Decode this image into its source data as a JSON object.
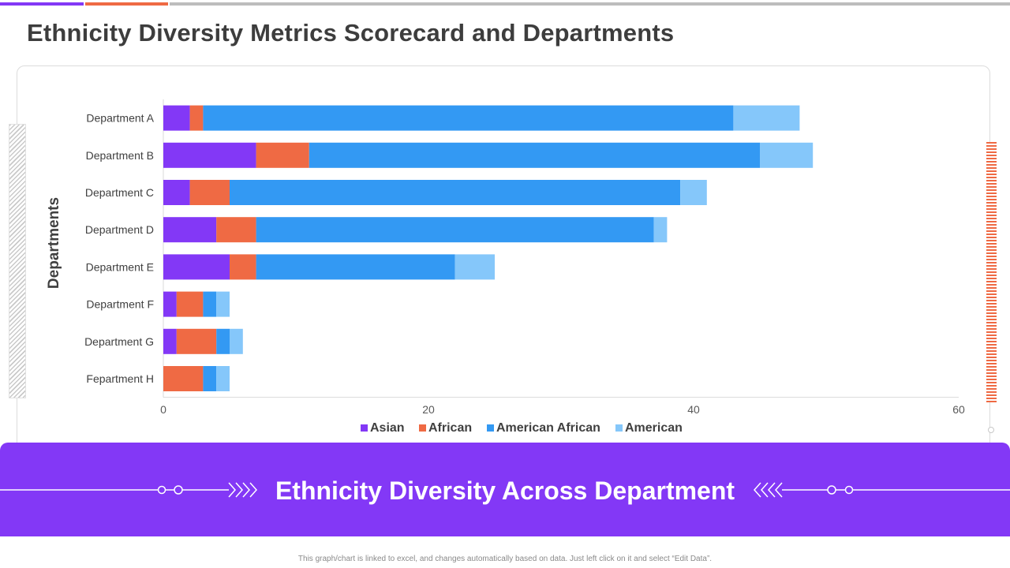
{
  "page": {
    "title": "Ethnicity Diversity Metrics Scorecard and Departments",
    "banner_title": "Ethnicity Diversity Across Department",
    "footnote": "This graph/chart is linked to excel, and changes automatically based on data. Just left click on it and select “Edit Data”.",
    "colors": {
      "top_bar_purple": "#8338f6",
      "top_bar_orange": "#ef6a44",
      "top_bar_gray": "#bdbdbd",
      "banner": "#8338f6",
      "stripes": "#ef6a44"
    }
  },
  "chart_data": {
    "type": "bar",
    "orientation": "horizontal",
    "stacked": true,
    "title": "",
    "xlabel": "",
    "ylabel": "Departments",
    "xlim": [
      0,
      60
    ],
    "xticks": [
      0,
      20,
      40,
      60
    ],
    "grid": false,
    "legend_position": "bottom",
    "categories": [
      "Department A",
      "Department B",
      "Department C",
      "Department D",
      "Department E",
      "Department F",
      "Department G",
      "Fepartment H"
    ],
    "series": [
      {
        "name": "Asian",
        "color": "#8338f6",
        "values": [
          2,
          7,
          2,
          4,
          5,
          1,
          1,
          0
        ]
      },
      {
        "name": "African",
        "color": "#ef6a44",
        "values": [
          1,
          4,
          3,
          3,
          2,
          2,
          3,
          3
        ]
      },
      {
        "name": "American African",
        "color": "#3399f3",
        "values": [
          40,
          34,
          34,
          30,
          15,
          1,
          1,
          1
        ]
      },
      {
        "name": "American",
        "color": "#85c7fa",
        "values": [
          5,
          4,
          2,
          1,
          3,
          1,
          1,
          1
        ]
      }
    ]
  }
}
